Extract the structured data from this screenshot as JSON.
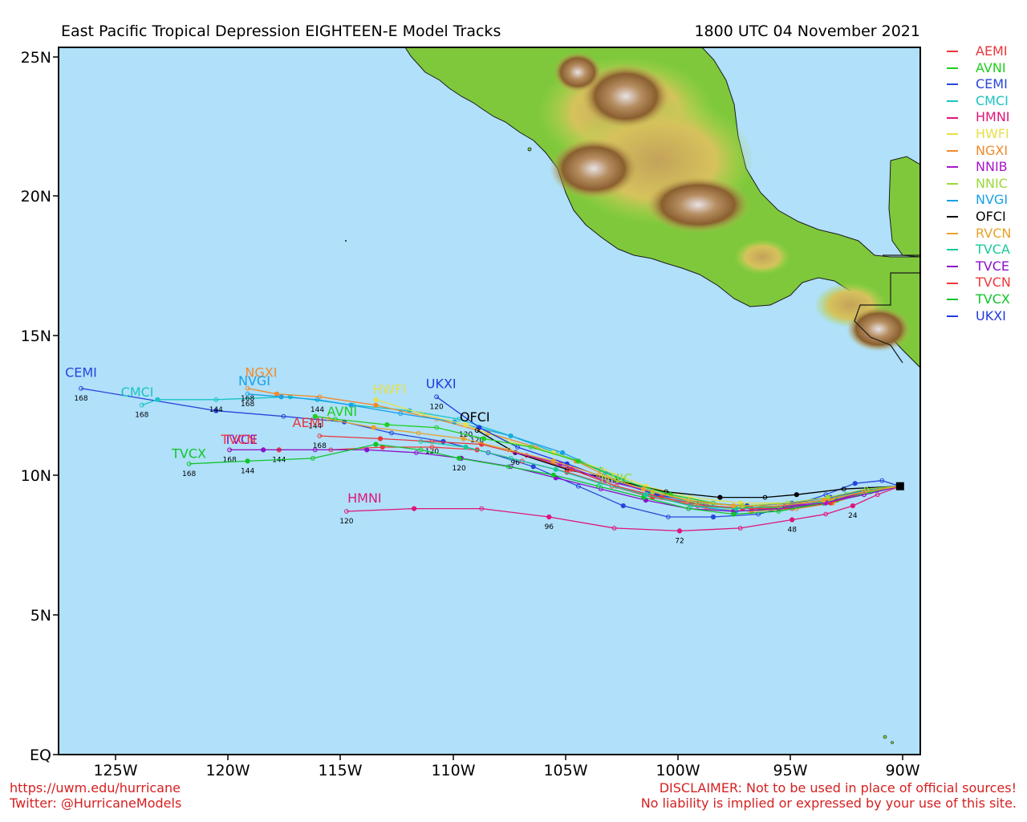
{
  "header": {
    "title": "East Pacific Tropical Depression EIGHTEEN-E Model Tracks",
    "date": "1800 UTC 04 November 2021"
  },
  "axes": {
    "lat_labels": [
      "25N",
      "20N",
      "15N",
      "10N",
      "5N",
      "EQ"
    ],
    "lat_values": [
      25,
      20,
      15,
      10,
      5,
      0
    ],
    "lon_labels": [
      "125W",
      "120W",
      "115W",
      "110W",
      "105W",
      "100W",
      "95W",
      "90W"
    ],
    "lon_values": [
      -125,
      -120,
      -115,
      -110,
      -105,
      -100,
      -95,
      -90
    ],
    "lon_range": [
      -127.6,
      -89.3
    ],
    "lat_range": [
      0,
      25.3
    ]
  },
  "colors": {
    "ocean": "#b0e0fa",
    "lowland": "#7fc83c",
    "highland": "#8a5f2f",
    "peak": "#e4dde0"
  },
  "legend": [
    {
      "label": "AEMI",
      "color": "#e8363a"
    },
    {
      "label": "AVNI",
      "color": "#1fcf1f"
    },
    {
      "label": "CEMI",
      "color": "#2746d9"
    },
    {
      "label": "CMCI",
      "color": "#19c4c4"
    },
    {
      "label": "HMNI",
      "color": "#e0157a"
    },
    {
      "label": "HWFI",
      "color": "#e6e04a"
    },
    {
      "label": "NGXI",
      "color": "#f08a2b"
    },
    {
      "label": "NNIB",
      "color": "#a517c9"
    },
    {
      "label": "NNIC",
      "color": "#9ad93a"
    },
    {
      "label": "NVGI",
      "color": "#1aa0e8"
    },
    {
      "label": "OFCI",
      "color": "#000000"
    },
    {
      "label": "RVCN",
      "color": "#e8a12a"
    },
    {
      "label": "TVCA",
      "color": "#18c99a"
    },
    {
      "label": "TVCE",
      "color": "#8a12c8"
    },
    {
      "label": "TVCN",
      "color": "#f0383a"
    },
    {
      "label": "TVCX",
      "color": "#10c42a"
    },
    {
      "label": "UKXI",
      "color": "#2238e0"
    }
  ],
  "storm_start": {
    "lon": -90.2,
    "lat": 9.6
  },
  "tracks": [
    {
      "id": "CEMI",
      "color": "#2746d9",
      "label": "CEMI",
      "points": [
        [
          -90.2,
          9.6
        ],
        [
          -91.0,
          9.8
        ],
        [
          -92.2,
          9.7
        ],
        [
          -93.5,
          9.3
        ],
        [
          -95.0,
          8.9
        ],
        [
          -96.5,
          8.6
        ],
        [
          -98.5,
          8.5
        ],
        [
          -100.5,
          8.5
        ],
        [
          -102.5,
          8.9
        ],
        [
          -104.5,
          9.6
        ],
        [
          -106.5,
          10.3
        ],
        [
          -108.5,
          10.8
        ],
        [
          -110.5,
          11.2
        ],
        [
          -112.8,
          11.5
        ],
        [
          -114.9,
          11.9
        ],
        [
          -117.6,
          12.1
        ],
        [
          -120.6,
          12.3
        ],
        [
          -126.6,
          13.1
        ]
      ],
      "hour_labels": [
        {
          "i": 17,
          "text": "168"
        }
      ]
    },
    {
      "id": "CMCI",
      "color": "#19c4c4",
      "label": "CMCI",
      "points": [
        [
          -90.2,
          9.6
        ],
        [
          -91.4,
          9.5
        ],
        [
          -92.6,
          9.3
        ],
        [
          -94.0,
          9.0
        ],
        [
          -95.5,
          8.8
        ],
        [
          -97.5,
          8.8
        ],
        [
          -99.5,
          9.0
        ],
        [
          -101.5,
          9.5
        ],
        [
          -103.5,
          10.2
        ],
        [
          -105.5,
          10.8
        ],
        [
          -107.5,
          11.4
        ],
        [
          -109.8,
          12.0
        ],
        [
          -112.0,
          12.3
        ],
        [
          -114.5,
          12.5
        ],
        [
          -117.3,
          12.8
        ],
        [
          -120.6,
          12.7
        ],
        [
          -123.2,
          12.7
        ],
        [
          -123.9,
          12.5
        ]
      ],
      "hour_labels": [
        {
          "i": 17,
          "text": "168"
        },
        {
          "i": 15,
          "text": "144"
        }
      ]
    },
    {
      "id": "NGXI",
      "color": "#f08a2b",
      "label": "NGXI",
      "points": [
        [
          -90.2,
          9.6
        ],
        [
          -91.6,
          9.4
        ],
        [
          -93.2,
          9.0
        ],
        [
          -94.8,
          8.8
        ],
        [
          -96.8,
          8.7
        ],
        [
          -98.8,
          8.8
        ],
        [
          -100.8,
          9.2
        ],
        [
          -102.8,
          9.8
        ],
        [
          -104.6,
          10.5
        ],
        [
          -106.4,
          11.0
        ],
        [
          -108.5,
          11.5
        ],
        [
          -110.8,
          12.0
        ],
        [
          -113.5,
          12.5
        ],
        [
          -116.0,
          12.8
        ],
        [
          -117.9,
          12.9
        ],
        [
          -119.2,
          13.1
        ]
      ],
      "hour_labels": [
        {
          "i": 15,
          "text": "168"
        }
      ]
    },
    {
      "id": "NVGI",
      "color": "#1aa0e8",
      "label": "NVGI",
      "points": [
        [
          -90.2,
          9.6
        ],
        [
          -91.8,
          9.3
        ],
        [
          -93.5,
          9.0
        ],
        [
          -95.5,
          8.8
        ],
        [
          -97.5,
          8.7
        ],
        [
          -99.5,
          8.9
        ],
        [
          -101.3,
          9.4
        ],
        [
          -103.3,
          10.1
        ],
        [
          -105.2,
          10.8
        ],
        [
          -107.5,
          11.4
        ],
        [
          -110.0,
          11.9
        ],
        [
          -112.4,
          12.2
        ],
        [
          -114.6,
          12.5
        ],
        [
          -116.1,
          12.7
        ],
        [
          -117.7,
          12.8
        ],
        [
          -119.2,
          12.9
        ]
      ],
      "hour_labels": [
        {
          "i": 15,
          "text": "168"
        },
        {
          "i": 13,
          "text": "144"
        }
      ]
    },
    {
      "id": "HWFI",
      "color": "#e6e04a",
      "label": "HWFI",
      "points": [
        [
          -90.2,
          9.6
        ],
        [
          -91.6,
          9.4
        ],
        [
          -93.2,
          9.1
        ],
        [
          -95.1,
          9.0
        ],
        [
          -97.3,
          9.0
        ],
        [
          -99.5,
          9.2
        ],
        [
          -101.5,
          9.6
        ],
        [
          -103.4,
          10.2
        ],
        [
          -105.6,
          10.8
        ],
        [
          -107.6,
          11.2
        ],
        [
          -109.5,
          11.8
        ],
        [
          -111.5,
          12.2
        ],
        [
          -113.5,
          12.7
        ]
      ],
      "hour_labels": [
        {
          "i": 10,
          "text": "120"
        }
      ]
    },
    {
      "id": "UKXI",
      "color": "#2238e0",
      "label": "UKXI",
      "points": [
        [
          -90.2,
          9.6
        ],
        [
          -91.6,
          9.5
        ],
        [
          -93.3,
          9.2
        ],
        [
          -95.0,
          9.0
        ],
        [
          -97.0,
          8.9
        ],
        [
          -99.0,
          9.0
        ],
        [
          -101.0,
          9.3
        ],
        [
          -103.0,
          9.8
        ],
        [
          -105.0,
          10.4
        ],
        [
          -107.2,
          11.0
        ],
        [
          -108.9,
          11.7
        ],
        [
          -110.8,
          12.8
        ]
      ],
      "hour_labels": [
        {
          "i": 11,
          "text": "120"
        }
      ]
    },
    {
      "id": "OFCI",
      "color": "#000000",
      "label": "OFCI",
      "points": [
        [
          -90.2,
          9.6
        ],
        [
          -92.7,
          9.5
        ],
        [
          -94.8,
          9.3
        ],
        [
          -96.2,
          9.2
        ],
        [
          -98.2,
          9.2
        ],
        [
          -100.6,
          9.4
        ],
        [
          -102.8,
          9.8
        ],
        [
          -105.0,
          10.2
        ],
        [
          -107.3,
          10.8
        ],
        [
          -109.0,
          11.6
        ]
      ],
      "hour_labels": [
        {
          "i": 9,
          "text": "120"
        },
        {
          "i": 8,
          "text": "96"
        }
      ]
    },
    {
      "id": "AVNI",
      "color": "#1fcf1f",
      "label": "AVNI",
      "points": [
        [
          -90.2,
          9.6
        ],
        [
          -91.5,
          9.4
        ],
        [
          -93.0,
          9.1
        ],
        [
          -94.7,
          8.9
        ],
        [
          -96.4,
          8.8
        ],
        [
          -98.5,
          9.0
        ],
        [
          -100.4,
          9.3
        ],
        [
          -102.5,
          9.8
        ],
        [
          -104.5,
          10.5
        ],
        [
          -106.6,
          11.0
        ],
        [
          -108.7,
          11.3
        ],
        [
          -110.8,
          11.7
        ],
        [
          -113.0,
          11.8
        ],
        [
          -115.3,
          12.0
        ],
        [
          -116.2,
          12.1
        ]
      ],
      "hour_labels": [
        {
          "i": 14,
          "text": "144"
        }
      ]
    },
    {
      "id": "AEMI",
      "color": "#e8363a",
      "label": "AEMI",
      "points": [
        [
          -90.2,
          9.6
        ],
        [
          -91.8,
          9.4
        ],
        [
          -93.3,
          9.0
        ],
        [
          -95.0,
          8.8
        ],
        [
          -96.8,
          8.8
        ],
        [
          -98.8,
          8.9
        ],
        [
          -100.8,
          9.2
        ],
        [
          -102.8,
          9.6
        ],
        [
          -104.8,
          10.2
        ],
        [
          -106.8,
          10.7
        ],
        [
          -108.8,
          11.1
        ],
        [
          -111.0,
          11.2
        ],
        [
          -113.3,
          11.3
        ],
        [
          -116.0,
          11.4
        ]
      ],
      "hour_labels": [
        {
          "i": 13,
          "text": "168"
        },
        {
          "i": 11,
          "text": "120"
        }
      ]
    },
    {
      "id": "TVCN",
      "color": "#f0383a",
      "label": "TVCN",
      "points": [
        [
          -90.2,
          9.6
        ],
        [
          -91.8,
          9.4
        ],
        [
          -93.5,
          9.1
        ],
        [
          -95.3,
          8.9
        ],
        [
          -97.2,
          8.8
        ],
        [
          -99.2,
          8.9
        ],
        [
          -101.2,
          9.2
        ],
        [
          -103.0,
          9.6
        ],
        [
          -105.0,
          10.1
        ],
        [
          -107.0,
          10.5
        ],
        [
          -109.0,
          10.9
        ],
        [
          -111.0,
          11.0
        ],
        [
          -113.2,
          11.0
        ],
        [
          -115.5,
          10.9
        ],
        [
          -117.8,
          10.9
        ],
        [
          -120.0,
          10.9
        ]
      ],
      "hour_labels": [
        {
          "i": 15,
          "text": "168"
        },
        {
          "i": 14,
          "text": "144"
        }
      ]
    },
    {
      "id": "TVCE",
      "color": "#8a12c8",
      "label": "TVCE",
      "points": [
        [
          -90.2,
          9.6
        ],
        [
          -91.8,
          9.3
        ],
        [
          -93.6,
          9.0
        ],
        [
          -95.6,
          8.8
        ],
        [
          -97.6,
          8.7
        ],
        [
          -99.6,
          8.8
        ],
        [
          -101.5,
          9.1
        ],
        [
          -103.5,
          9.5
        ],
        [
          -105.5,
          9.9
        ],
        [
          -107.5,
          10.3
        ],
        [
          -109.7,
          10.6
        ],
        [
          -111.7,
          10.8
        ],
        [
          -113.9,
          10.9
        ],
        [
          -116.2,
          10.9
        ],
        [
          -118.5,
          10.9
        ],
        [
          -120.0,
          10.9
        ]
      ],
      "hour_labels": []
    },
    {
      "id": "TVCX",
      "color": "#10c42a",
      "label": "TVCX",
      "points": [
        [
          -90.2,
          9.6
        ],
        [
          -91.8,
          9.4
        ],
        [
          -93.6,
          9.0
        ],
        [
          -95.6,
          8.7
        ],
        [
          -97.6,
          8.6
        ],
        [
          -99.6,
          8.8
        ],
        [
          -101.6,
          9.2
        ],
        [
          -103.6,
          9.6
        ],
        [
          -105.6,
          10.0
        ],
        [
          -107.6,
          10.3
        ],
        [
          -109.8,
          10.6
        ],
        [
          -111.5,
          10.9
        ],
        [
          -113.5,
          11.1
        ],
        [
          -116.3,
          10.6
        ],
        [
          -119.2,
          10.5
        ],
        [
          -121.8,
          10.4
        ]
      ],
      "hour_labels": [
        {
          "i": 15,
          "text": "168"
        },
        {
          "i": 14,
          "text": "144"
        },
        {
          "i": 10,
          "text": "120"
        }
      ]
    },
    {
      "id": "TVCA",
      "color": "#18c99a",
      "label": "",
      "points": [
        [
          -90.2,
          9.6
        ],
        [
          -91.8,
          9.4
        ],
        [
          -93.6,
          9.1
        ],
        [
          -95.5,
          8.9
        ],
        [
          -97.5,
          8.8
        ],
        [
          -99.5,
          8.9
        ],
        [
          -101.5,
          9.3
        ],
        [
          -103.5,
          9.7
        ],
        [
          -105.5,
          10.2
        ],
        [
          -107.5,
          10.6
        ],
        [
          -109.5,
          11.0
        ],
        [
          -111.5,
          11.2
        ]
      ],
      "hour_labels": []
    },
    {
      "id": "NNIB",
      "color": "#a517c9",
      "label": "",
      "points": [
        [
          -90.2,
          9.6
        ],
        [
          -91.8,
          9.4
        ],
        [
          -93.5,
          9.0
        ],
        [
          -95.3,
          8.9
        ],
        [
          -97.2,
          8.9
        ],
        [
          -99.2,
          9.0
        ],
        [
          -101.2,
          9.4
        ],
        [
          -103.3,
          9.8
        ],
        [
          -105.3,
          10.4
        ],
        [
          -107.3,
          10.8
        ]
      ],
      "hour_labels": []
    },
    {
      "id": "NNIC",
      "color": "#9ad93a",
      "label": "NNIC",
      "points": [
        [
          -90.2,
          9.6
        ],
        [
          -91.7,
          9.5
        ],
        [
          -93.4,
          9.2
        ],
        [
          -95.2,
          9.0
        ],
        [
          -97.2,
          8.9
        ],
        [
          -99.2,
          9.0
        ],
        [
          -101.2,
          9.4
        ],
        [
          -102.8,
          9.8
        ]
      ],
      "hour_labels": []
    },
    {
      "id": "RVCN",
      "color": "#e8a12a",
      "label": "",
      "points": [
        [
          -90.2,
          9.6
        ],
        [
          -91.8,
          9.4
        ],
        [
          -93.6,
          9.1
        ],
        [
          -95.6,
          8.9
        ],
        [
          -97.6,
          8.9
        ],
        [
          -99.6,
          9.1
        ],
        [
          -101.6,
          9.5
        ],
        [
          -103.6,
          10.0
        ],
        [
          -105.6,
          10.5
        ],
        [
          -107.6,
          10.9
        ],
        [
          -109.6,
          11.3
        ],
        [
          -111.6,
          11.5
        ],
        [
          -113.6,
          11.7
        ],
        [
          -115.6,
          12.0
        ]
      ],
      "hour_labels": []
    },
    {
      "id": "HMNI",
      "color": "#e0157a",
      "label": "HMNI",
      "points": [
        [
          -90.2,
          9.6
        ],
        [
          -91.2,
          9.3
        ],
        [
          -92.3,
          8.9
        ],
        [
          -93.5,
          8.6
        ],
        [
          -95.0,
          8.4
        ],
        [
          -97.3,
          8.1
        ],
        [
          -100.0,
          8.0
        ],
        [
          -102.9,
          8.1
        ],
        [
          -105.8,
          8.5
        ],
        [
          -108.8,
          8.8
        ],
        [
          -111.8,
          8.8
        ],
        [
          -114.8,
          8.7
        ]
      ],
      "hour_labels": [
        {
          "i": 11,
          "text": "120"
        },
        {
          "i": 8,
          "text": "96"
        },
        {
          "i": 6,
          "text": "72"
        },
        {
          "i": 4,
          "text": "48"
        },
        {
          "i": 2,
          "text": "24"
        }
      ]
    }
  ],
  "track_labels": [
    {
      "text": "CEMI",
      "color": "#2746d9",
      "lon": -126.6,
      "lat": 13.4
    },
    {
      "text": "CMCI",
      "color": "#19c4c4",
      "lon": -124.1,
      "lat": 12.7
    },
    {
      "text": "NGXI",
      "color": "#f08a2b",
      "lon": -118.6,
      "lat": 13.4
    },
    {
      "text": "NVGI",
      "color": "#1aa0e8",
      "lon": -118.9,
      "lat": 13.1
    },
    {
      "text": "HWFI",
      "color": "#e6e04a",
      "lon": -112.9,
      "lat": 12.8
    },
    {
      "text": "UKXI",
      "color": "#2238e0",
      "lon": -110.6,
      "lat": 13.0
    },
    {
      "text": "OFCI",
      "color": "#000000",
      "lon": -109.1,
      "lat": 11.8
    },
    {
      "text": "AVNI",
      "color": "#1fcf1f",
      "lon": -115.0,
      "lat": 12.0
    },
    {
      "text": "AEMI",
      "color": "#e8363a",
      "lon": -116.5,
      "lat": 11.6
    },
    {
      "text": "TVCE",
      "color": "#8a12c8",
      "lon": -119.5,
      "lat": 11.0
    },
    {
      "text": "TVCN",
      "color": "#f0383a",
      "lon": -119.6,
      "lat": 11.0
    },
    {
      "text": "TVCX",
      "color": "#10c42a",
      "lon": -121.8,
      "lat": 10.5
    },
    {
      "text": "HMNI",
      "color": "#e0157a",
      "lon": -114.0,
      "lat": 8.9
    },
    {
      "text": "NNIC",
      "color": "#9ad93a",
      "lon": -102.8,
      "lat": 9.6
    }
  ],
  "footer": {
    "url": "https://uwm.edu/hurricane",
    "twitter": "Twitter: @HurricaneModels",
    "disclaimer_1": "DISCLAIMER: Not to be used in place of official sources!",
    "disclaimer_2": "No liability is implied or expressed by your use of this site."
  }
}
